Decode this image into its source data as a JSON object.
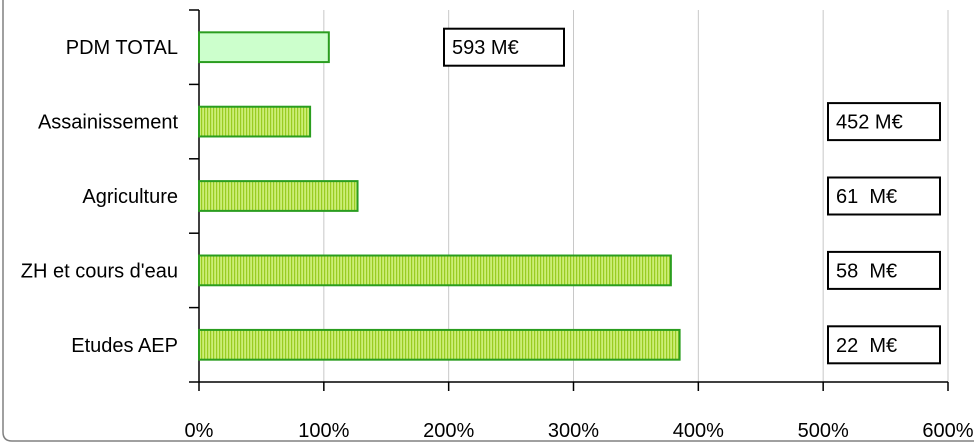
{
  "chart_data": {
    "type": "bar",
    "orientation": "horizontal",
    "categories": [
      "PDM TOTAL",
      "Assainissement",
      "Agriculture",
      "ZH et cours d'eau",
      "Etudes AEP"
    ],
    "values": [
      104,
      89,
      127,
      378,
      385
    ],
    "x_unit": "%",
    "xlim": [
      0,
      600
    ],
    "x_ticks": [
      0,
      100,
      200,
      300,
      400,
      500,
      600
    ],
    "x_tick_labels": [
      "0%",
      "100%",
      "200%",
      "300%",
      "400%",
      "500%",
      "600%"
    ],
    "annotations": [
      "593 M€",
      "452 M€",
      "61  M€",
      "58  M€",
      "22  M€"
    ],
    "grid": "vertical",
    "title": "",
    "xlabel": "",
    "ylabel": "",
    "colors": {
      "total_fill": "#ccffcc",
      "bar_fill": "#ccee77",
      "bar_hatch": "#99cc22",
      "bar_stroke": "#2a9d1f",
      "grid": "#c8c8c8",
      "frame": "#808080"
    }
  }
}
